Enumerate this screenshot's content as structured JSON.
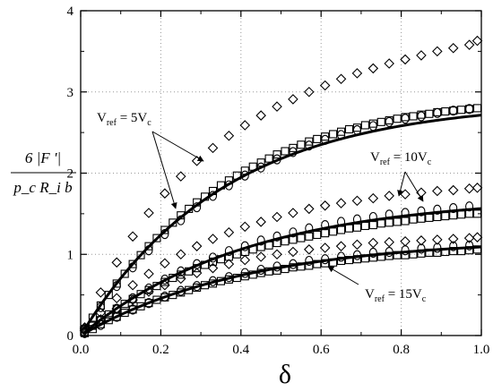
{
  "chart_data": {
    "type": "scatter",
    "title": "",
    "xlabel": "δ",
    "ylabel": {
      "numerator": "6 |F '|",
      "denominator": "p_c R_i b"
    },
    "xlim": [
      0,
      1.0
    ],
    "ylim": [
      0,
      4
    ],
    "x_ticks": [
      "0.0",
      "0.2",
      "0.4",
      "0.6",
      "0.8",
      "1.0"
    ],
    "y_ticks": [
      "0",
      "1",
      "2",
      "3",
      "4"
    ],
    "grid": true,
    "grid_style": "dotted",
    "annotations": [
      {
        "text": "V",
        "sub": "ref",
        "rest": " = 5V",
        "tail": "c"
      },
      {
        "text": "V",
        "sub": "ref",
        "rest": " = 10V",
        "tail": "c"
      },
      {
        "text": "V",
        "sub": "ref",
        "rest": " = 15V",
        "tail": "c"
      }
    ],
    "curves": [
      {
        "group": "5Vc",
        "a": 2.89,
        "k": 2.8
      },
      {
        "group": "10Vc",
        "a": 1.72,
        "k": 2.4
      },
      {
        "group": "15Vc",
        "a": 1.2,
        "k": 2.4
      }
    ],
    "series": [
      {
        "marker": "diamond",
        "group": "5Vc",
        "x": [
          0.01,
          0.05,
          0.09,
          0.13,
          0.17,
          0.21,
          0.25,
          0.29,
          0.33,
          0.37,
          0.41,
          0.45,
          0.49,
          0.53,
          0.57,
          0.61,
          0.65,
          0.69,
          0.73,
          0.77,
          0.81,
          0.85,
          0.89,
          0.93,
          0.97,
          0.99
        ],
        "y": [
          0.1,
          0.53,
          0.9,
          1.22,
          1.51,
          1.75,
          1.96,
          2.15,
          2.31,
          2.46,
          2.59,
          2.71,
          2.82,
          2.91,
          3.0,
          3.08,
          3.16,
          3.23,
          3.29,
          3.35,
          3.4,
          3.45,
          3.5,
          3.54,
          3.58,
          3.63
        ]
      },
      {
        "marker": "square",
        "group": "5Vc",
        "x": [
          0.01,
          0.03,
          0.05,
          0.07,
          0.09,
          0.11,
          0.13,
          0.15,
          0.17,
          0.19,
          0.21,
          0.23,
          0.25,
          0.27,
          0.29,
          0.31,
          0.33,
          0.35,
          0.37,
          0.39,
          0.41,
          0.43,
          0.45,
          0.47,
          0.49,
          0.51,
          0.53,
          0.55,
          0.57,
          0.59,
          0.61,
          0.63,
          0.65,
          0.67,
          0.69,
          0.71,
          0.73,
          0.75,
          0.77,
          0.79,
          0.81,
          0.83,
          0.85,
          0.87,
          0.89,
          0.91,
          0.93,
          0.95,
          0.97,
          0.99
        ],
        "y": [
          0.08,
          0.22,
          0.37,
          0.5,
          0.64,
          0.76,
          0.88,
          0.99,
          1.1,
          1.2,
          1.3,
          1.39,
          1.48,
          1.56,
          1.64,
          1.71,
          1.78,
          1.85,
          1.91,
          1.97,
          2.03,
          2.08,
          2.13,
          2.18,
          2.23,
          2.27,
          2.31,
          2.35,
          2.39,
          2.42,
          2.45,
          2.48,
          2.51,
          2.54,
          2.56,
          2.59,
          2.61,
          2.63,
          2.65,
          2.67,
          2.69,
          2.7,
          2.72,
          2.73,
          2.75,
          2.76,
          2.77,
          2.78,
          2.79,
          2.8
        ]
      },
      {
        "marker": "circle",
        "group": "5Vc",
        "x": [
          0.01,
          0.05,
          0.09,
          0.13,
          0.17,
          0.21,
          0.25,
          0.29,
          0.33,
          0.37,
          0.41,
          0.45,
          0.49,
          0.53,
          0.57,
          0.61,
          0.65,
          0.69,
          0.73,
          0.77,
          0.81,
          0.85,
          0.89,
          0.93,
          0.97
        ],
        "y": [
          0.08,
          0.35,
          0.61,
          0.84,
          1.05,
          1.25,
          1.42,
          1.58,
          1.72,
          1.85,
          1.97,
          2.07,
          2.17,
          2.26,
          2.34,
          2.41,
          2.47,
          2.53,
          2.58,
          2.63,
          2.67,
          2.7,
          2.74,
          2.77,
          2.79
        ]
      },
      {
        "marker": "diamond",
        "group": "10Vc",
        "x": [
          0.01,
          0.05,
          0.09,
          0.13,
          0.17,
          0.21,
          0.25,
          0.29,
          0.33,
          0.37,
          0.41,
          0.45,
          0.49,
          0.53,
          0.57,
          0.61,
          0.65,
          0.69,
          0.73,
          0.77,
          0.81,
          0.85,
          0.89,
          0.93,
          0.97,
          0.99
        ],
        "y": [
          0.08,
          0.28,
          0.46,
          0.62,
          0.76,
          0.89,
          1.0,
          1.1,
          1.19,
          1.27,
          1.34,
          1.4,
          1.46,
          1.51,
          1.56,
          1.6,
          1.63,
          1.66,
          1.69,
          1.72,
          1.74,
          1.76,
          1.78,
          1.79,
          1.81,
          1.82
        ]
      },
      {
        "marker": "square",
        "group": "10Vc",
        "x": [
          0.01,
          0.03,
          0.05,
          0.07,
          0.09,
          0.11,
          0.13,
          0.15,
          0.17,
          0.19,
          0.21,
          0.23,
          0.25,
          0.27,
          0.29,
          0.31,
          0.33,
          0.35,
          0.37,
          0.39,
          0.41,
          0.43,
          0.45,
          0.47,
          0.49,
          0.51,
          0.53,
          0.55,
          0.57,
          0.59,
          0.61,
          0.63,
          0.65,
          0.67,
          0.69,
          0.71,
          0.73,
          0.75,
          0.77,
          0.79,
          0.81,
          0.83,
          0.85,
          0.87,
          0.89,
          0.91,
          0.93,
          0.95,
          0.97,
          0.99
        ],
        "y": [
          0.04,
          0.12,
          0.19,
          0.26,
          0.33,
          0.39,
          0.45,
          0.51,
          0.56,
          0.61,
          0.66,
          0.71,
          0.75,
          0.79,
          0.83,
          0.87,
          0.91,
          0.94,
          0.97,
          1.0,
          1.03,
          1.06,
          1.09,
          1.11,
          1.14,
          1.16,
          1.18,
          1.2,
          1.22,
          1.24,
          1.26,
          1.28,
          1.3,
          1.32,
          1.33,
          1.35,
          1.36,
          1.38,
          1.39,
          1.4,
          1.41,
          1.43,
          1.44,
          1.45,
          1.46,
          1.47,
          1.48,
          1.49,
          1.5,
          1.5
        ]
      },
      {
        "marker": "circle",
        "group": "10Vc",
        "x": [
          0.01,
          0.05,
          0.09,
          0.13,
          0.17,
          0.21,
          0.25,
          0.29,
          0.33,
          0.37,
          0.41,
          0.45,
          0.49,
          0.53,
          0.57,
          0.61,
          0.65,
          0.69,
          0.73,
          0.77,
          0.81,
          0.85,
          0.89,
          0.93,
          0.97
        ],
        "y": [
          0.04,
          0.19,
          0.33,
          0.46,
          0.58,
          0.69,
          0.79,
          0.88,
          0.96,
          1.04,
          1.1,
          1.17,
          1.22,
          1.27,
          1.32,
          1.36,
          1.4,
          1.43,
          1.46,
          1.49,
          1.51,
          1.53,
          1.55,
          1.57,
          1.59
        ]
      },
      {
        "marker": "diamond",
        "group": "15Vc",
        "x": [
          0.01,
          0.05,
          0.09,
          0.13,
          0.17,
          0.21,
          0.25,
          0.29,
          0.33,
          0.37,
          0.41,
          0.45,
          0.49,
          0.53,
          0.57,
          0.61,
          0.65,
          0.69,
          0.73,
          0.77,
          0.81,
          0.85,
          0.89,
          0.93,
          0.97,
          0.99
        ],
        "y": [
          0.06,
          0.2,
          0.33,
          0.44,
          0.54,
          0.62,
          0.7,
          0.77,
          0.83,
          0.88,
          0.93,
          0.97,
          1.0,
          1.03,
          1.06,
          1.08,
          1.1,
          1.12,
          1.14,
          1.15,
          1.16,
          1.17,
          1.18,
          1.19,
          1.2,
          1.21
        ]
      },
      {
        "marker": "square",
        "group": "15Vc",
        "x": [
          0.01,
          0.03,
          0.05,
          0.07,
          0.09,
          0.11,
          0.13,
          0.15,
          0.17,
          0.19,
          0.21,
          0.23,
          0.25,
          0.27,
          0.29,
          0.31,
          0.33,
          0.35,
          0.37,
          0.39,
          0.41,
          0.43,
          0.45,
          0.47,
          0.49,
          0.51,
          0.53,
          0.55,
          0.57,
          0.59,
          0.61,
          0.63,
          0.65,
          0.67,
          0.69,
          0.71,
          0.73,
          0.75,
          0.77,
          0.79,
          0.81,
          0.83,
          0.85,
          0.87,
          0.89,
          0.91,
          0.93,
          0.95,
          0.97,
          0.99
        ],
        "y": [
          0.03,
          0.08,
          0.14,
          0.19,
          0.23,
          0.28,
          0.32,
          0.36,
          0.4,
          0.44,
          0.47,
          0.5,
          0.53,
          0.56,
          0.59,
          0.62,
          0.64,
          0.67,
          0.69,
          0.71,
          0.73,
          0.75,
          0.77,
          0.79,
          0.8,
          0.82,
          0.84,
          0.85,
          0.86,
          0.88,
          0.89,
          0.9,
          0.92,
          0.93,
          0.94,
          0.95,
          0.96,
          0.97,
          0.98,
          0.99,
          0.99,
          1.0,
          1.01,
          1.02,
          1.02,
          1.03,
          1.04,
          1.04,
          1.05,
          1.06
        ]
      },
      {
        "marker": "circle",
        "group": "15Vc",
        "x": [
          0.01,
          0.05,
          0.09,
          0.13,
          0.17,
          0.21,
          0.25,
          0.29,
          0.33,
          0.37,
          0.41,
          0.45,
          0.49,
          0.53,
          0.57,
          0.61,
          0.65,
          0.69,
          0.73,
          0.77,
          0.81,
          0.85,
          0.89,
          0.93,
          0.97
        ],
        "y": [
          0.03,
          0.13,
          0.23,
          0.32,
          0.4,
          0.48,
          0.55,
          0.61,
          0.67,
          0.72,
          0.77,
          0.81,
          0.85,
          0.88,
          0.92,
          0.94,
          0.97,
          0.99,
          1.02,
          1.03,
          1.05,
          1.07,
          1.08,
          1.1,
          1.11
        ]
      }
    ]
  }
}
